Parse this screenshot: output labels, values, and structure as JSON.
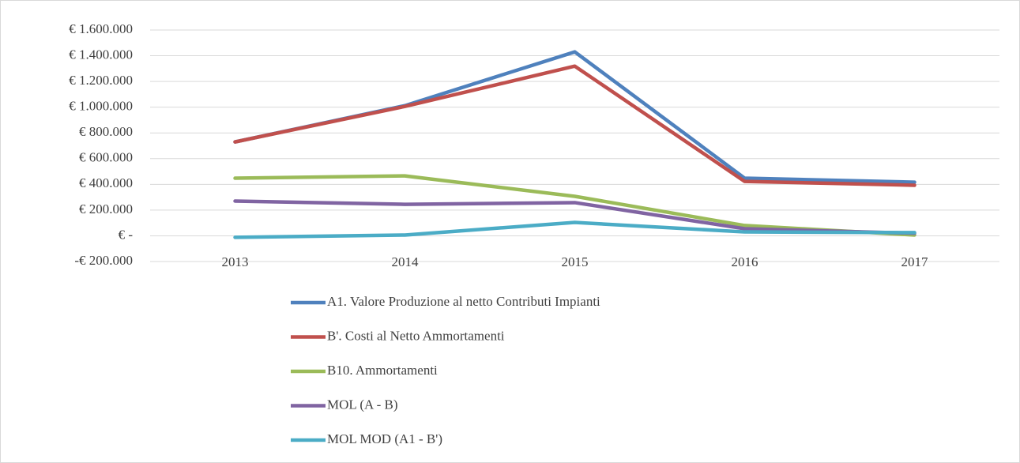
{
  "chart_data": {
    "type": "line",
    "categories": [
      "2013",
      "2014",
      "2015",
      "2016",
      "2017"
    ],
    "series": [
      {
        "name": "A1. Valore Produzione al netto Contributi Impianti",
        "color": "#4f81bd",
        "values": [
          730000,
          1012000,
          1430000,
          448000,
          417000
        ]
      },
      {
        "name": "B'. Costi al Netto Ammortamenti",
        "color": "#c0504d",
        "values": [
          730000,
          1006000,
          1319000,
          423000,
          393000
        ]
      },
      {
        "name": "B10. Ammortamenti",
        "color": "#9bbb59",
        "values": [
          448000,
          466000,
          307000,
          80000,
          6000
        ]
      },
      {
        "name": "MOL (A - B)",
        "color": "#8064a2",
        "values": [
          270000,
          245000,
          258000,
          55000,
          20000
        ]
      },
      {
        "name": "MOL  MOD (A1 -  B')",
        "color": "#4bacc6",
        "values": [
          -12000,
          6000,
          104000,
          30000,
          25000
        ]
      }
    ],
    "ylim": [
      -200000,
      1600000
    ],
    "yticks": [
      {
        "value": -200000,
        "label": "-€ 200.000"
      },
      {
        "value": 0,
        "label": "€ -"
      },
      {
        "value": 200000,
        "label": "€ 200.000"
      },
      {
        "value": 400000,
        "label": "€ 400.000"
      },
      {
        "value": 600000,
        "label": "€ 600.000"
      },
      {
        "value": 800000,
        "label": "€ 800.000"
      },
      {
        "value": 1000000,
        "label": "€ 1.000.000"
      },
      {
        "value": 1200000,
        "label": "€ 1.200.000"
      },
      {
        "value": 1400000,
        "label": "€ 1.400.000"
      },
      {
        "value": 1600000,
        "label": "€ 1.600.000"
      }
    ],
    "grid": true,
    "legend": "bottom"
  }
}
